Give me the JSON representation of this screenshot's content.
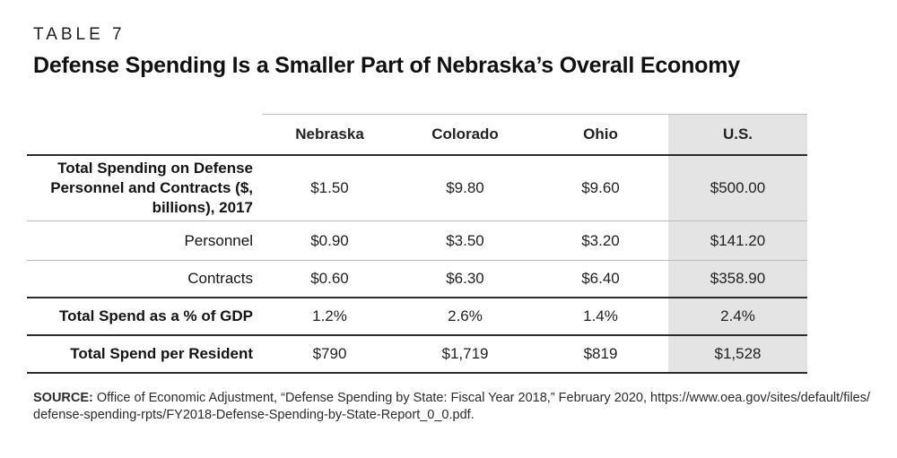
{
  "page": {
    "eyebrow": "TABLE 7",
    "title": "Defense Spending Is a Smaller Part of Nebraska’s Overall Economy"
  },
  "table": {
    "columns": [
      "Nebraska",
      "Colorado",
      "Ohio",
      "U.S."
    ],
    "highlight_column": "U.S.",
    "highlight_color": "#e4e4e4",
    "rows": [
      {
        "label": "Total Spending on Defense Personnel and Contracts ($, billions), 2017",
        "values": [
          "$1.50",
          "$9.80",
          "$9.60",
          "$500.00"
        ]
      },
      {
        "label": "Personnel",
        "values": [
          "$0.90",
          "$3.50",
          "$3.20",
          "$141.20"
        ]
      },
      {
        "label": "Contracts",
        "values": [
          "$0.60",
          "$6.30",
          "$6.40",
          "$358.90"
        ]
      },
      {
        "label": "Total Spend as a % of GDP",
        "values": [
          "1.2%",
          "2.6%",
          "1.4%",
          "2.4%"
        ]
      },
      {
        "label": "Total Spend per Resident",
        "values": [
          "$790",
          "$1,719",
          "$819",
          "$1,528"
        ]
      }
    ]
  },
  "source": {
    "label": "SOURCE:",
    "line1": "Office of Economic Adjustment, “Defense Spending by State: Fiscal Year 2018,” February 2020, https://www.oea.gov/sites/default/files/",
    "line2": "defense-spending-rpts/FY2018-Defense-Spending-by-State-Report_0_0.pdf."
  }
}
